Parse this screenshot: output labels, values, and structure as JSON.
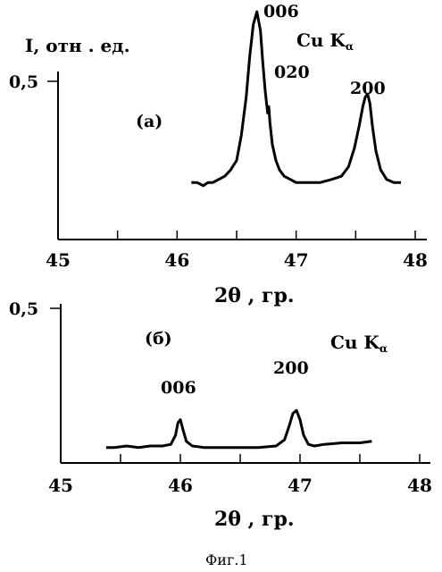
{
  "caption": "Фиг.1",
  "chart_data": [
    {
      "type": "line",
      "panel_label": "(а)",
      "ylabel": "I, отн . ед.",
      "xlabel": "2θ , гр.",
      "radiation": "Cu K",
      "radiation_sub": "α",
      "xlim": [
        45,
        48
      ],
      "x_ticks": [
        "45",
        "46",
        "47",
        "48"
      ],
      "y_ticks": [
        {
          "value": 0.5,
          "label": "0,5"
        }
      ],
      "ylim": [
        0,
        0.75
      ],
      "peaks": [
        {
          "label": "006",
          "x": 46.7
        },
        {
          "label": "020",
          "x": 46.77
        },
        {
          "label": "200",
          "x": 47.6
        }
      ],
      "series": [
        {
          "x": [
            46.12,
            46.17,
            46.22,
            46.26,
            46.3,
            46.35,
            46.4,
            46.45,
            46.5,
            46.54,
            46.58,
            46.61,
            46.64,
            46.67,
            46.7,
            46.72,
            46.74,
            46.76,
            46.77,
            46.78,
            46.8,
            46.83,
            46.86,
            46.9,
            46.95,
            47.0,
            47.1,
            47.2,
            47.3,
            47.38,
            47.44,
            47.49,
            47.53,
            47.56,
            47.58,
            47.6,
            47.62,
            47.64,
            47.67,
            47.71,
            47.76,
            47.82,
            47.88
          ],
          "y": [
            0.18,
            0.18,
            0.17,
            0.18,
            0.18,
            0.19,
            0.2,
            0.22,
            0.25,
            0.33,
            0.45,
            0.58,
            0.68,
            0.72,
            0.66,
            0.56,
            0.47,
            0.4,
            0.42,
            0.37,
            0.3,
            0.25,
            0.22,
            0.2,
            0.19,
            0.18,
            0.18,
            0.18,
            0.19,
            0.2,
            0.23,
            0.29,
            0.36,
            0.42,
            0.45,
            0.46,
            0.43,
            0.36,
            0.28,
            0.22,
            0.19,
            0.18,
            0.18
          ]
        }
      ]
    },
    {
      "type": "line",
      "panel_label": "(б)",
      "ylabel": "",
      "xlabel": "2θ , гр.",
      "radiation": "Cu K",
      "radiation_sub": "α",
      "xlim": [
        45,
        48
      ],
      "x_ticks": [
        "45",
        "46",
        "47",
        "48"
      ],
      "y_ticks": [
        {
          "value": 0.5,
          "label": "0,5"
        }
      ],
      "ylim": [
        0,
        0.6
      ],
      "peaks": [
        {
          "label": "006",
          "x": 46.0
        },
        {
          "label": "200",
          "x": 46.97
        }
      ],
      "series": [
        {
          "x": [
            45.38,
            45.45,
            45.55,
            45.65,
            45.75,
            45.85,
            45.92,
            45.96,
            45.98,
            46.0,
            46.02,
            46.05,
            46.1,
            46.2,
            46.35,
            46.5,
            46.65,
            46.8,
            46.87,
            46.91,
            46.94,
            46.97,
            47.0,
            47.03,
            47.07,
            47.12,
            47.2,
            47.35,
            47.5,
            47.6
          ],
          "y": [
            0.05,
            0.05,
            0.055,
            0.05,
            0.055,
            0.055,
            0.06,
            0.09,
            0.13,
            0.14,
            0.11,
            0.07,
            0.055,
            0.05,
            0.05,
            0.05,
            0.05,
            0.055,
            0.075,
            0.12,
            0.16,
            0.17,
            0.14,
            0.09,
            0.06,
            0.055,
            0.06,
            0.065,
            0.065,
            0.07
          ]
        }
      ]
    }
  ]
}
